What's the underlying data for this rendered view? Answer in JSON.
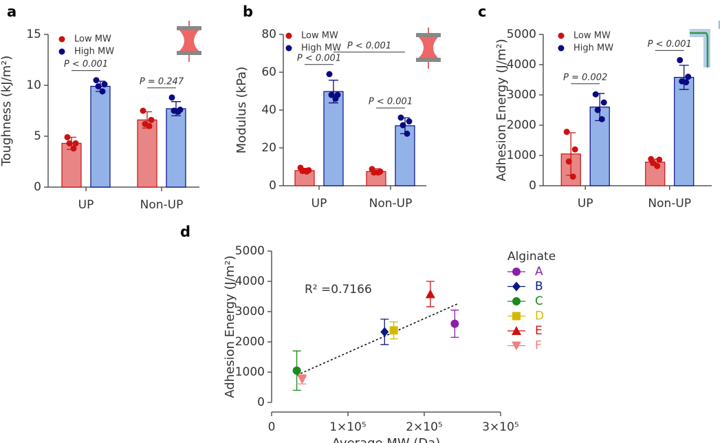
{
  "chart_data": [
    {
      "type": "bar",
      "panel_label": "a",
      "y_label": "Toughness (kJ/m²)",
      "categories": [
        "UP",
        "Non-UP"
      ],
      "ylim": [
        0,
        15
      ],
      "yticks": [
        0,
        5,
        10,
        15
      ],
      "series": [
        {
          "name": "Low MW",
          "color": "#e88585",
          "point_color": "#cc1111",
          "values": [
            4.3,
            6.6
          ],
          "errors": [
            0.6,
            0.8
          ],
          "points": [
            [
              4.9,
              4.3,
              4.3,
              3.8
            ],
            [
              7.5,
              6.6,
              6.2,
              6.0
            ]
          ]
        },
        {
          "name": "High MW",
          "color": "#93b3e8",
          "point_color": "#0a0a80",
          "values": [
            9.9,
            7.7
          ],
          "errors": [
            0.5,
            0.7
          ],
          "points": [
            [
              10.5,
              10.1,
              9.9,
              9.4
            ],
            [
              8.8,
              7.6,
              7.5,
              7.4
            ]
          ]
        }
      ],
      "brackets": [
        {
          "label": "P < 0.001",
          "category": "UP"
        },
        {
          "label": "P = 0.247",
          "category": "Non-UP"
        }
      ]
    },
    {
      "type": "bar",
      "panel_label": "b",
      "y_label": "Modulus (kPa)",
      "categories": [
        "UP",
        "Non-UP"
      ],
      "ylim": [
        0,
        80
      ],
      "yticks": [
        0,
        20,
        40,
        60,
        80
      ],
      "series": [
        {
          "name": "Low MW",
          "color": "#e88585",
          "point_color": "#cc1111",
          "values": [
            8.0,
            7.5
          ],
          "errors": [
            1.2,
            1.5
          ],
          "points": [
            [
              9.5,
              8.2,
              7.8,
              7.5
            ],
            [
              8.8,
              7.5,
              7.0,
              7.0
            ]
          ]
        },
        {
          "name": "High MW",
          "color": "#93b3e8",
          "point_color": "#0a0a80",
          "values": [
            49.8,
            31.7
          ],
          "errors": [
            6.0,
            4.2
          ],
          "points": [
            [
              59,
              48,
              48,
              46
            ],
            [
              36,
              34,
              32,
              27.5
            ]
          ]
        }
      ],
      "brackets": [
        {
          "label": "P < 0.001",
          "category": "UP"
        },
        {
          "label": "P < 0.001",
          "category": "Non-UP"
        },
        {
          "label": "P < 0.001",
          "series": "High MW"
        }
      ]
    },
    {
      "type": "bar",
      "panel_label": "c",
      "y_label": "Adhesion  Energy (J/m²)",
      "categories": [
        "UP",
        "Non-UP"
      ],
      "ylim": [
        0,
        5000
      ],
      "yticks": [
        0,
        1000,
        2000,
        3000,
        4000,
        5000
      ],
      "series": [
        {
          "name": "Low MW",
          "color": "#e88585",
          "point_color": "#cc1111",
          "values": [
            1050,
            780
          ],
          "errors": [
            700,
            100
          ],
          "points": [
            [
              1780,
              1200,
              800,
              300
            ],
            [
              880,
              860,
              750,
              650
            ]
          ]
        },
        {
          "name": "High MW",
          "color": "#93b3e8",
          "point_color": "#0a0a80",
          "values": [
            2600,
            3580
          ],
          "errors": [
            450,
            400
          ],
          "points": [
            [
              3020,
              2750,
              2500,
              2200
            ],
            [
              4150,
              3600,
              3450,
              3420
            ]
          ]
        }
      ],
      "brackets": [
        {
          "label": "P = 0.002",
          "category": "UP"
        },
        {
          "label": "P < 0.001",
          "category": "Non-UP"
        }
      ]
    },
    {
      "type": "scatter",
      "panel_label": "d",
      "x_label": "Average MW (Da)",
      "y_label": "Adhesion  Energy (J/m²)",
      "legend_title": "Alginate",
      "xlim": [
        0,
        300000
      ],
      "xticks": [
        0,
        {
          "value": 100000,
          "label": "1×10⁵"
        },
        {
          "value": 200000,
          "label": "2×10⁵"
        },
        {
          "value": 300000,
          "label": "3×10⁵"
        }
      ],
      "ylim": [
        0,
        5000
      ],
      "yticks": [
        0,
        1000,
        2000,
        3000,
        4000,
        5000
      ],
      "series": [
        {
          "name": "A",
          "color": "#8a1fa8",
          "marker": "circle",
          "x": [
            240000
          ],
          "values": [
            2600
          ],
          "errors": [
            450
          ]
        },
        {
          "name": "B",
          "color": "#0a1a80",
          "marker": "diamond",
          "x": [
            148000
          ],
          "values": [
            2330
          ],
          "errors": [
            420
          ]
        },
        {
          "name": "C",
          "color": "#1a8a1a",
          "marker": "circle",
          "x": [
            33000
          ],
          "values": [
            1050
          ],
          "errors": [
            650
          ]
        },
        {
          "name": "D",
          "color": "#d4b800",
          "marker": "square",
          "x": [
            160000
          ],
          "values": [
            2380
          ],
          "errors": [
            280
          ]
        },
        {
          "name": "E",
          "color": "#cc1111",
          "marker": "triangle",
          "x": [
            208000
          ],
          "values": [
            3580
          ],
          "errors": [
            420
          ]
        },
        {
          "name": "F",
          "color": "#f08080",
          "marker": "triangle-down",
          "x": [
            40000
          ],
          "values": [
            760
          ],
          "errors": [
            150
          ]
        }
      ],
      "trendline": {
        "label": "R² =0.7166",
        "x": [
          33000,
          243000
        ],
        "values": [
          900,
          3250
        ]
      }
    }
  ]
}
